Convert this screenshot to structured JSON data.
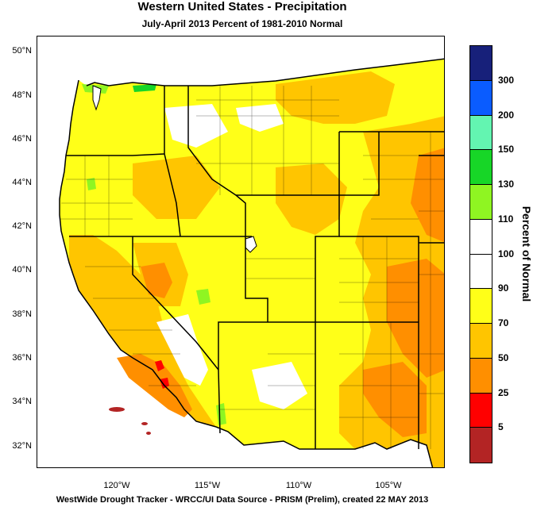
{
  "title": "Western United States - Precipitation",
  "subtitle": "July-April 2013  Percent of 1981-2010 Normal",
  "footer": "WestWide Drought Tracker - WRCC/UI  Data Source - PRISM (Prelim), created 22 MAY 2013",
  "lat_labels": [
    "50°N",
    "48°N",
    "46°N",
    "44°N",
    "42°N",
    "40°N",
    "38°N",
    "36°N",
    "34°N",
    "32°N"
  ],
  "lon_labels": [
    "120°W",
    "115°W",
    "110°W",
    "105°W"
  ],
  "colorbar": {
    "title": "Percent of Normal",
    "labels": [
      "300",
      "200",
      "150",
      "130",
      "110",
      "100",
      "90",
      "70",
      "50",
      "25",
      "5"
    ],
    "bins": [
      {
        "color": "#17207a"
      },
      {
        "color": "#0a5cff"
      },
      {
        "color": "#63f5b1"
      },
      {
        "color": "#17d627"
      },
      {
        "color": "#8ff522"
      },
      {
        "color": "#ffffff"
      },
      {
        "color": "#ffffff"
      },
      {
        "color": "#ffff18"
      },
      {
        "color": "#ffc500"
      },
      {
        "color": "#ff8f00"
      },
      {
        "color": "#ff0000"
      },
      {
        "color": "#b32424"
      }
    ]
  },
  "colors": {
    "pct_0_5": "#b32424",
    "pct_5_25": "#ff0000",
    "pct_25_50": "#ff8f00",
    "pct_50_70": "#ffc500",
    "pct_70_90": "#ffff18",
    "pct_90_110": "#ffffff",
    "pct_110_130": "#8ff522",
    "pct_130_150": "#17d627",
    "boundary": "#000000"
  }
}
